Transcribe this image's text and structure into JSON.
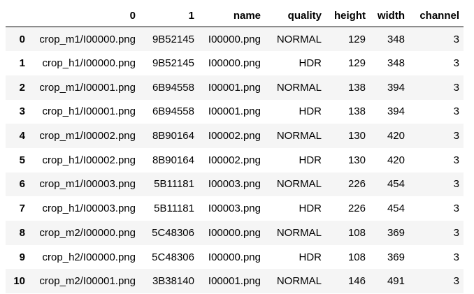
{
  "table": {
    "index_header": "",
    "columns": [
      "0",
      "1",
      "name",
      "quality",
      "height",
      "width",
      "channel"
    ],
    "rows": [
      {
        "index": "0",
        "cells": [
          "crop_m1/I00000.png",
          "9B52145",
          "I00000.png",
          "NORMAL",
          "129",
          "348",
          "3"
        ]
      },
      {
        "index": "1",
        "cells": [
          "crop_h1/I00000.png",
          "9B52145",
          "I00000.png",
          "HDR",
          "129",
          "348",
          "3"
        ]
      },
      {
        "index": "2",
        "cells": [
          "crop_m1/I00001.png",
          "6B94558",
          "I00001.png",
          "NORMAL",
          "138",
          "394",
          "3"
        ]
      },
      {
        "index": "3",
        "cells": [
          "crop_h1/I00001.png",
          "6B94558",
          "I00001.png",
          "HDR",
          "138",
          "394",
          "3"
        ]
      },
      {
        "index": "4",
        "cells": [
          "crop_m1/I00002.png",
          "8B90164",
          "I00002.png",
          "NORMAL",
          "130",
          "420",
          "3"
        ]
      },
      {
        "index": "5",
        "cells": [
          "crop_h1/I00002.png",
          "8B90164",
          "I00002.png",
          "HDR",
          "130",
          "420",
          "3"
        ]
      },
      {
        "index": "6",
        "cells": [
          "crop_m1/I00003.png",
          "5B11181",
          "I00003.png",
          "NORMAL",
          "226",
          "454",
          "3"
        ]
      },
      {
        "index": "7",
        "cells": [
          "crop_h1/I00003.png",
          "5B11181",
          "I00003.png",
          "HDR",
          "226",
          "454",
          "3"
        ]
      },
      {
        "index": "8",
        "cells": [
          "crop_m2/I00000.png",
          "5C48306",
          "I00000.png",
          "NORMAL",
          "108",
          "369",
          "3"
        ]
      },
      {
        "index": "9",
        "cells": [
          "crop_h2/I00000.png",
          "5C48306",
          "I00000.png",
          "HDR",
          "108",
          "369",
          "3"
        ]
      },
      {
        "index": "10",
        "cells": [
          "crop_m2/I00001.png",
          "3B38140",
          "I00001.png",
          "NORMAL",
          "146",
          "491",
          "3"
        ]
      }
    ]
  }
}
